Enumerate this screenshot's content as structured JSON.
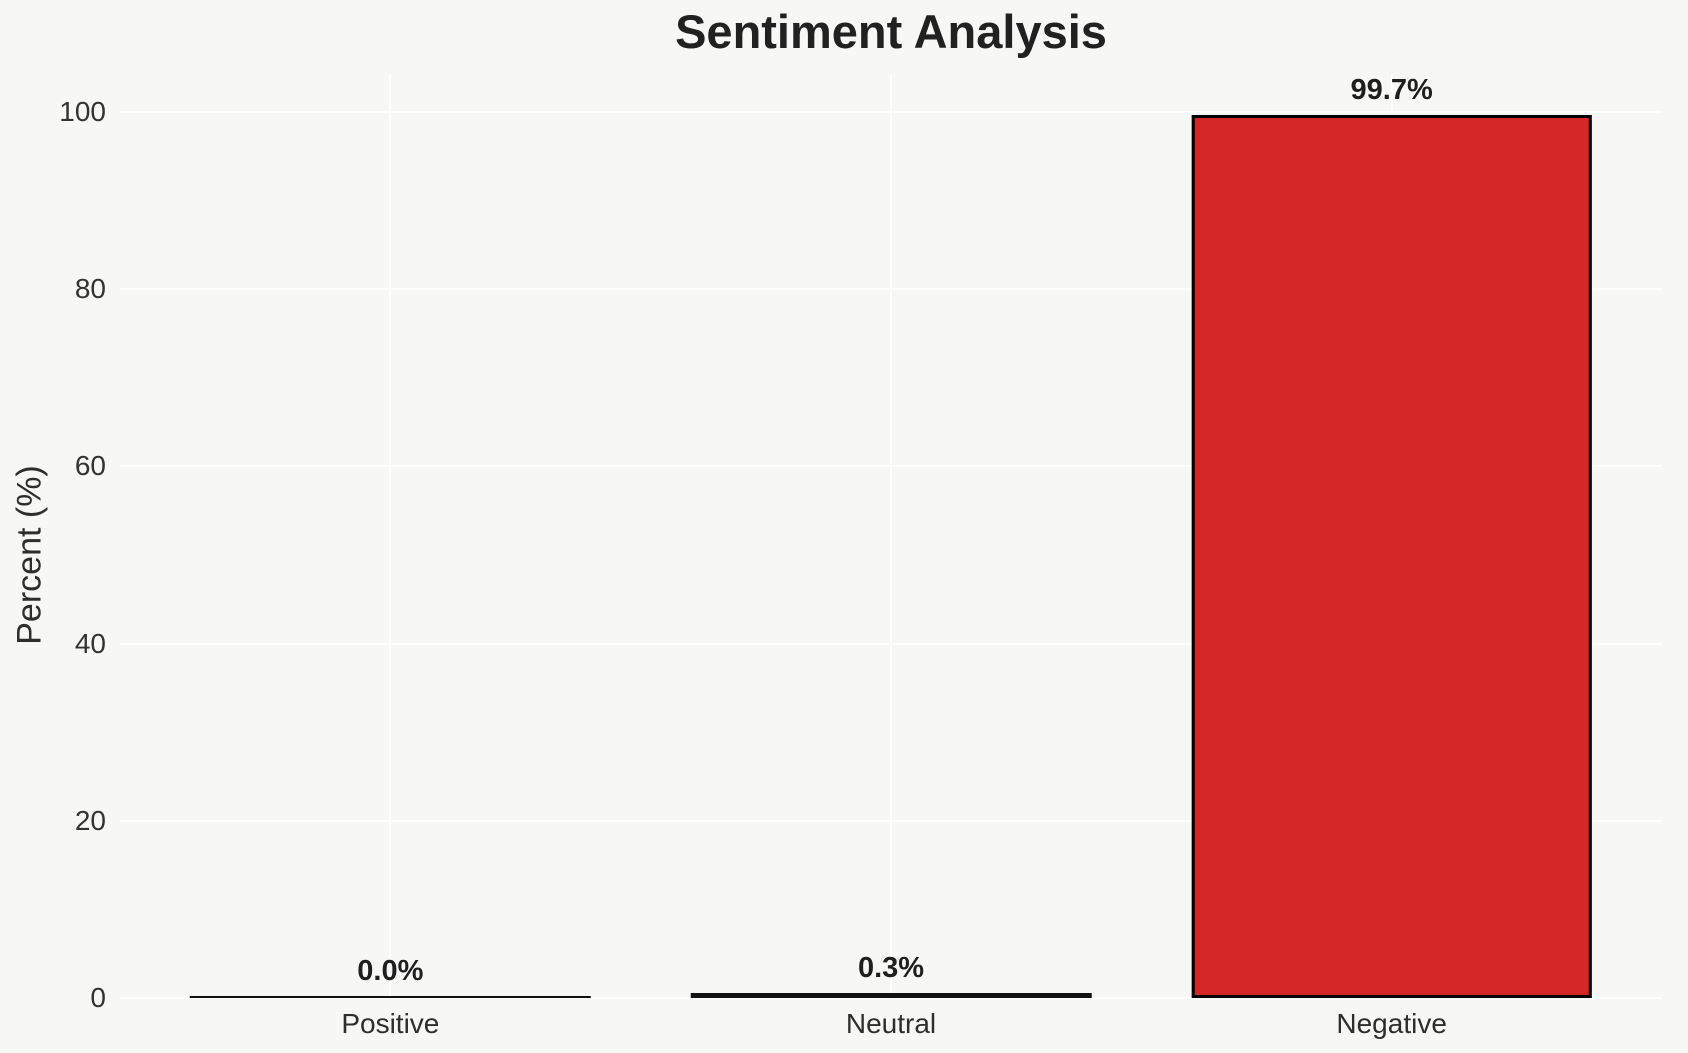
{
  "chart_data": {
    "type": "bar",
    "title": "Sentiment Analysis",
    "xlabel": "",
    "ylabel": "Percent (%)",
    "categories": [
      "Positive",
      "Neutral",
      "Negative"
    ],
    "values": [
      0.0,
      0.3,
      99.7
    ],
    "bar_labels": [
      "0.0%",
      "0.3%",
      "99.7%"
    ],
    "yticks": [
      "0",
      "20",
      "40",
      "60",
      "80",
      "100"
    ],
    "ylim": [
      0,
      100
    ],
    "grid": "on",
    "legend": "none",
    "colors": {
      "bar_fill": "#d62728",
      "bar_edge": "#000000",
      "figure_background": "#f7f7f6",
      "gridline": "#ffffff",
      "title_text": "#212121",
      "axis_text": "#333333"
    }
  }
}
